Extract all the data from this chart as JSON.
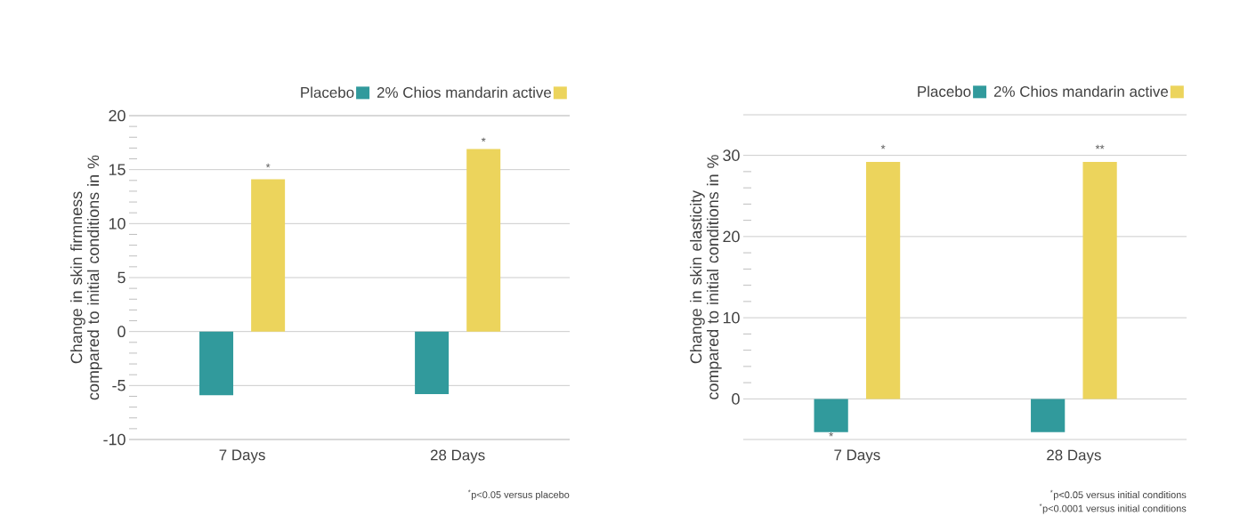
{
  "chart_data": [
    {
      "type": "bar",
      "ylabel": "Change in skin firmness compared to initial conditions in %",
      "categories": [
        "7 Days",
        "28 Days"
      ],
      "series": [
        {
          "name": "Placebo",
          "color": "#319a9c",
          "values": [
            -5.9,
            -5.8
          ]
        },
        {
          "name": "2% Chios mandarin active",
          "color": "#ecd45c",
          "values": [
            14.1,
            16.9
          ]
        }
      ],
      "ylim": [
        -10,
        20
      ],
      "yticks": [
        -10,
        -5,
        0,
        5,
        10,
        15,
        20
      ],
      "grid": "y",
      "legend": "top right",
      "annotations": [
        "*",
        "*",
        "$^{*}$p<0.05 versus placebo"
      ]
    },
    {
      "type": "bar",
      "ylabel": "Change in skin elasticity compared to initial conditions in %",
      "categories": [
        "7 Days",
        "28 Days"
      ],
      "series": [
        {
          "name": "Placebo",
          "color": "#319a9c",
          "values": [
            -4.1,
            -4.1
          ]
        },
        {
          "name": "2% Chios mandarin active",
          "color": "#ecd45c",
          "values": [
            29.2,
            29.2
          ]
        }
      ],
      "ylim": [
        -5,
        35
      ],
      "yticks": [
        0,
        10,
        20,
        30
      ],
      "grid": "y",
      "legend": "top right",
      "annotations": [
        "*",
        "**",
        "*",
        "$^{*}$p<0.05 versus initial conditions",
        "$^{*}$p<0.0001 versus initial conditions"
      ]
    }
  ]
}
